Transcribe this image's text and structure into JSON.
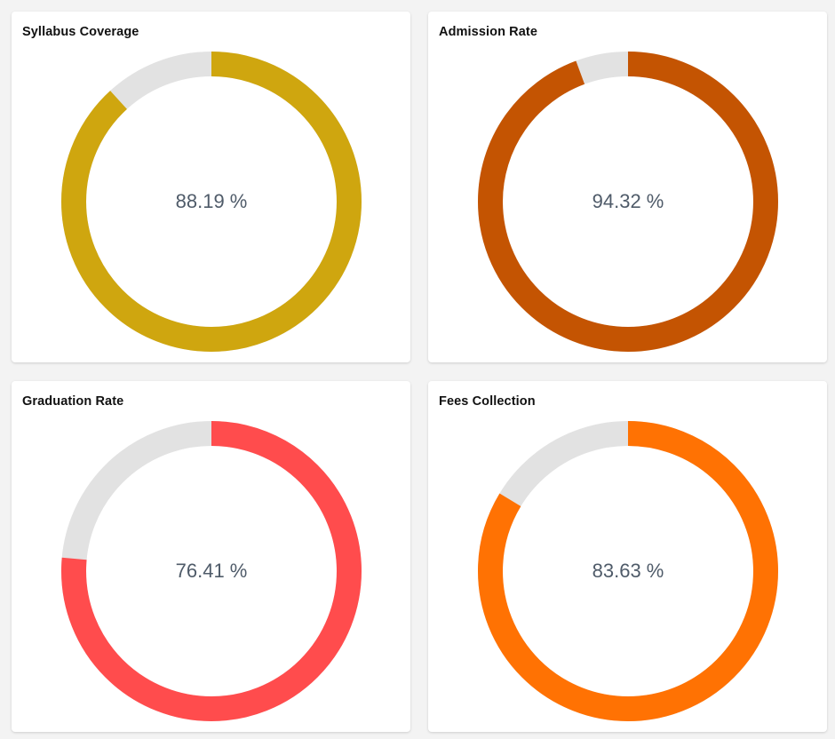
{
  "cards": [
    {
      "title": "Syllabus Coverage",
      "value": 88.19,
      "label": "88.19 %",
      "color": "#cfa60f",
      "track_color": "#e2e2e2"
    },
    {
      "title": "Admission Rate",
      "value": 94.32,
      "label": "94.32 %",
      "color": "#c45402",
      "track_color": "#e2e2e2"
    },
    {
      "title": "Graduation Rate",
      "value": 76.41,
      "label": "76.41 %",
      "color": "#ff4c4d",
      "track_color": "#e2e2e2"
    },
    {
      "title": "Fees Collection",
      "value": 83.63,
      "label": "83.63 %",
      "color": "#ff7203",
      "track_color": "#e2e2e2"
    }
  ]
}
